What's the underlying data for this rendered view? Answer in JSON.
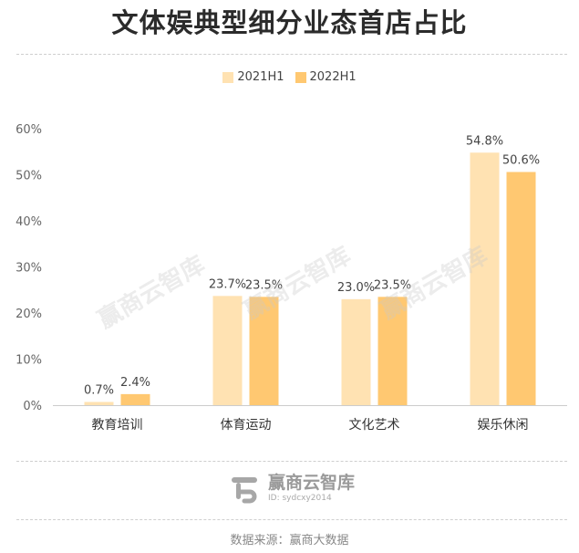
{
  "title": "文体娱典型细分业态首店占比",
  "legend": [
    {
      "label": "2021H1",
      "color": "#FFE2B2"
    },
    {
      "label": "2022H1",
      "color": "#FFC871"
    }
  ],
  "chart_data": {
    "type": "bar",
    "categories": [
      "教育培训",
      "体育运动",
      "文化艺术",
      "娱乐休闲"
    ],
    "series": [
      {
        "name": "2021H1",
        "values": [
          0.7,
          23.7,
          23.0,
          54.8
        ],
        "labels": [
          "0.7%",
          "23.7%",
          "23.0%",
          "54.8%"
        ]
      },
      {
        "name": "2022H1",
        "values": [
          2.4,
          23.5,
          23.5,
          50.6
        ],
        "labels": [
          "2.4%",
          "23.5%",
          "23.5%",
          "50.6%"
        ]
      }
    ],
    "ylim": [
      0,
      60
    ],
    "yticks": [
      "0%",
      "10%",
      "20%",
      "30%",
      "40%",
      "50%",
      "60%"
    ],
    "grid": false,
    "legend_position": "top-center"
  },
  "watermark": "赢商云智库",
  "brand": {
    "name": "赢商云智库",
    "id": "ID: sydcxy2014"
  },
  "source": "数据来源：赢商大数据"
}
